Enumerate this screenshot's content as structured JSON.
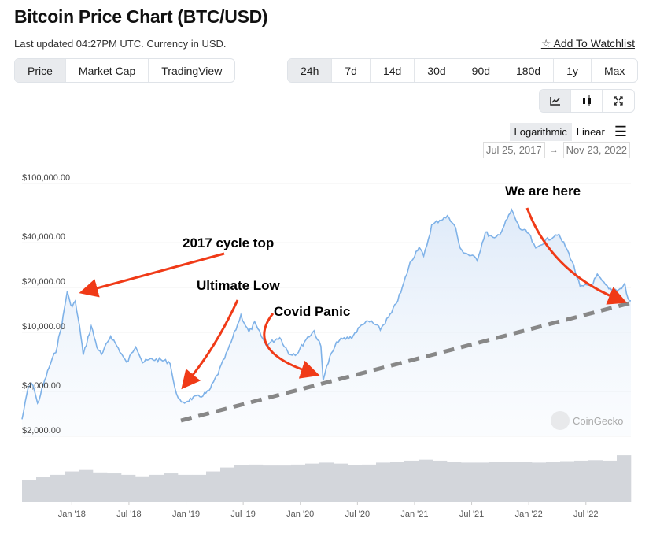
{
  "header": {
    "title": "Bitcoin Price Chart (BTC/USD)",
    "updated": "Last updated 04:27PM UTC. Currency in USD.",
    "watchlist": "Add To Watchlist"
  },
  "tabs": [
    {
      "label": "Price",
      "active": true
    },
    {
      "label": "Market Cap",
      "active": false
    },
    {
      "label": "TradingView",
      "active": false
    }
  ],
  "ranges": [
    {
      "label": "24h",
      "active": true
    },
    {
      "label": "7d"
    },
    {
      "label": "14d"
    },
    {
      "label": "30d"
    },
    {
      "label": "90d"
    },
    {
      "label": "180d"
    },
    {
      "label": "1y"
    },
    {
      "label": "Max"
    }
  ],
  "chart_tools": [
    "line-chart-icon",
    "candlestick-icon",
    "fullscreen-icon"
  ],
  "scale": {
    "log": "Logarithmic",
    "linear": "Linear",
    "active": "Logarithmic"
  },
  "date_range": {
    "from": "Jul 25, 2017",
    "to": "Nov 23, 2022"
  },
  "colors": {
    "line": "#7fb2e8",
    "arrow": "#f03a17",
    "trend": "#888888",
    "volume": "#d3d6db"
  },
  "chart_data": {
    "type": "line",
    "title": "Bitcoin Price Chart (BTC/USD)",
    "yscale": "log",
    "ylim": [
      2000,
      100000
    ],
    "xlim": [
      2017.564,
      2022.894
    ],
    "yticks": [
      {
        "v": 100000,
        "label": "$100,000.00"
      },
      {
        "v": 40000,
        "label": "$40,000.00"
      },
      {
        "v": 20000,
        "label": "$20,000.00"
      },
      {
        "v": 10000,
        "label": "$10,000.00"
      },
      {
        "v": 4000,
        "label": "$4,000.00"
      },
      {
        "v": 2000,
        "label": "$2,000.00"
      }
    ],
    "xticks": [
      {
        "v": 2018.0,
        "label": "Jan '18"
      },
      {
        "v": 2018.5,
        "label": "Jul '18"
      },
      {
        "v": 2019.0,
        "label": "Jan '19"
      },
      {
        "v": 2019.5,
        "label": "Jul '19"
      },
      {
        "v": 2020.0,
        "label": "Jan '20"
      },
      {
        "v": 2020.5,
        "label": "Jul '20"
      },
      {
        "v": 2021.0,
        "label": "Jan '21"
      },
      {
        "v": 2021.5,
        "label": "Jul '21"
      },
      {
        "v": 2022.0,
        "label": "Jan '22"
      },
      {
        "v": 2022.5,
        "label": "Jul '22"
      }
    ],
    "series": [
      {
        "name": "BTC price",
        "points": [
          [
            2017.564,
            2600
          ],
          [
            2017.62,
            4300
          ],
          [
            2017.66,
            4500
          ],
          [
            2017.7,
            3300
          ],
          [
            2017.75,
            4400
          ],
          [
            2017.8,
            5800
          ],
          [
            2017.86,
            7500
          ],
          [
            2017.91,
            11000
          ],
          [
            2017.96,
            19000
          ],
          [
            2017.99,
            15000
          ],
          [
            2018.03,
            16000
          ],
          [
            2018.08,
            9500
          ],
          [
            2018.1,
            7000
          ],
          [
            2018.17,
            11000
          ],
          [
            2018.22,
            8000
          ],
          [
            2018.26,
            7000
          ],
          [
            2018.34,
            9500
          ],
          [
            2018.42,
            7500
          ],
          [
            2018.48,
            6200
          ],
          [
            2018.56,
            8200
          ],
          [
            2018.62,
            6300
          ],
          [
            2018.7,
            6600
          ],
          [
            2018.78,
            6500
          ],
          [
            2018.86,
            6300
          ],
          [
            2018.9,
            4200
          ],
          [
            2018.96,
            3300
          ],
          [
            2019.05,
            3600
          ],
          [
            2019.12,
            3700
          ],
          [
            2019.2,
            4000
          ],
          [
            2019.28,
            5300
          ],
          [
            2019.38,
            8000
          ],
          [
            2019.48,
            13000
          ],
          [
            2019.55,
            10000
          ],
          [
            2019.6,
            11500
          ],
          [
            2019.7,
            8200
          ],
          [
            2019.82,
            9300
          ],
          [
            2019.9,
            7200
          ],
          [
            2019.97,
            7200
          ],
          [
            2020.05,
            9000
          ],
          [
            2020.12,
            10200
          ],
          [
            2020.18,
            8000
          ],
          [
            2020.2,
            4900
          ],
          [
            2020.26,
            6800
          ],
          [
            2020.33,
            8800
          ],
          [
            2020.45,
            9300
          ],
          [
            2020.55,
            11500
          ],
          [
            2020.62,
            11800
          ],
          [
            2020.7,
            10500
          ],
          [
            2020.8,
            13500
          ],
          [
            2020.88,
            18500
          ],
          [
            2020.96,
            29000
          ],
          [
            2021.04,
            38000
          ],
          [
            2021.08,
            32000
          ],
          [
            2021.15,
            52000
          ],
          [
            2021.22,
            57000
          ],
          [
            2021.3,
            60000
          ],
          [
            2021.36,
            50000
          ],
          [
            2021.4,
            36000
          ],
          [
            2021.48,
            33000
          ],
          [
            2021.55,
            31000
          ],
          [
            2021.62,
            47000
          ],
          [
            2021.7,
            42000
          ],
          [
            2021.76,
            48000
          ],
          [
            2021.85,
            66000
          ],
          [
            2021.92,
            50000
          ],
          [
            2022.0,
            46000
          ],
          [
            2022.06,
            36000
          ],
          [
            2022.12,
            40000
          ],
          [
            2022.25,
            46000
          ],
          [
            2022.32,
            38000
          ],
          [
            2022.38,
            30000
          ],
          [
            2022.45,
            20000
          ],
          [
            2022.55,
            21000
          ],
          [
            2022.6,
            24000
          ],
          [
            2022.7,
            19500
          ],
          [
            2022.8,
            19500
          ],
          [
            2022.84,
            21000
          ],
          [
            2022.87,
            16500
          ],
          [
            2022.894,
            16300
          ]
        ]
      }
    ],
    "volume_relative": [
      0.45,
      0.5,
      0.55,
      0.62,
      0.65,
      0.6,
      0.58,
      0.55,
      0.52,
      0.55,
      0.58,
      0.55,
      0.55,
      0.62,
      0.7,
      0.75,
      0.76,
      0.74,
      0.74,
      0.76,
      0.78,
      0.8,
      0.78,
      0.75,
      0.76,
      0.8,
      0.82,
      0.84,
      0.86,
      0.84,
      0.82,
      0.8,
      0.8,
      0.82,
      0.82,
      0.82,
      0.8,
      0.82,
      0.83,
      0.84,
      0.85,
      0.84,
      0.95
    ],
    "annotations": [
      {
        "text": "2017 cycle top"
      },
      {
        "text": "Ultimate Low"
      },
      {
        "text": "Covid Panic"
      },
      {
        "text": "We are here"
      }
    ],
    "watermark": "CoinGecko"
  }
}
